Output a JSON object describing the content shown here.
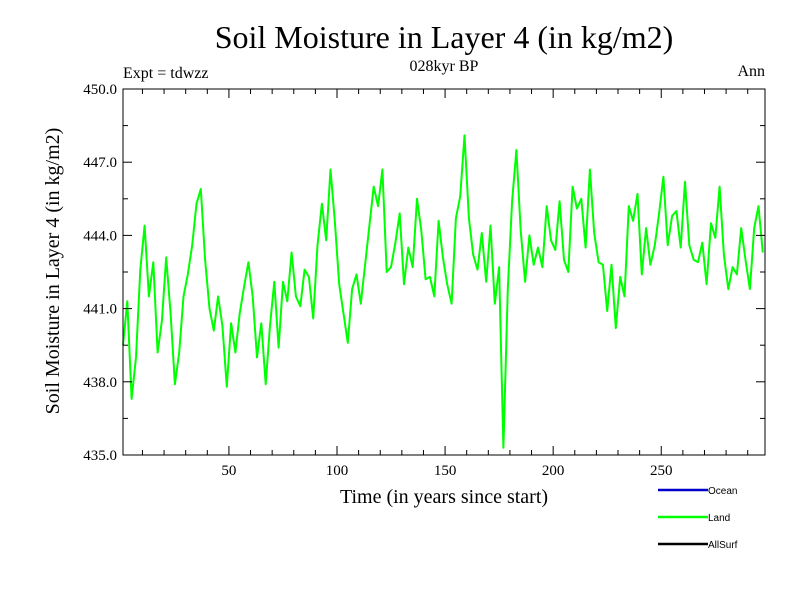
{
  "chart_data": {
    "type": "line",
    "title": "Soil Moisture in Layer 4 (in kg/m2)",
    "subtitle": "028kyr BP",
    "left_label": "Expt = tdwzz",
    "right_label": "Ann",
    "xlabel": "Time (in years since start)",
    "ylabel": "Soil Moisture in Layer 4 (in kg/m2)",
    "xlim": [
      1,
      298
    ],
    "ylim": [
      435.0,
      450.0
    ],
    "x_ticks": [
      50,
      100,
      150,
      200,
      250
    ],
    "x_tick_labels": [
      "50",
      "100",
      "150",
      "200",
      "250"
    ],
    "y_ticks": [
      435.0,
      438.0,
      441.0,
      444.0,
      447.0,
      450.0
    ],
    "y_tick_labels": [
      "435.0",
      "438.0",
      "441.0",
      "444.0",
      "447.0",
      "450.0"
    ],
    "grid": false,
    "legend_position": "bottom-right",
    "legend": [
      {
        "name": "Ocean",
        "color": "#0000cc"
      },
      {
        "name": "Land",
        "color": "#00ff00"
      },
      {
        "name": "AllSurf",
        "color": "#000000"
      }
    ],
    "series": [
      {
        "name": "Land",
        "color": "#00ff00",
        "x": [
          1,
          3,
          5,
          7,
          9,
          11,
          13,
          15,
          17,
          19,
          21,
          23,
          25,
          27,
          29,
          31,
          33,
          35,
          37,
          39,
          41,
          43,
          45,
          47,
          49,
          51,
          53,
          55,
          57,
          59,
          61,
          63,
          65,
          67,
          69,
          71,
          73,
          75,
          77,
          79,
          81,
          83,
          85,
          87,
          89,
          91,
          93,
          95,
          97,
          99,
          101,
          103,
          105,
          107,
          109,
          111,
          113,
          115,
          117,
          119,
          121,
          123,
          125,
          127,
          129,
          131,
          133,
          135,
          137,
          139,
          141,
          143,
          145,
          147,
          149,
          151,
          153,
          155,
          157,
          159,
          161,
          163,
          165,
          167,
          169,
          171,
          173,
          175,
          177,
          179,
          181,
          183,
          185,
          187,
          189,
          191,
          193,
          195,
          197,
          199,
          201,
          203,
          205,
          207,
          209,
          211,
          213,
          215,
          217,
          219,
          221,
          223,
          225,
          227,
          229,
          231,
          233,
          235,
          237,
          239,
          241,
          243,
          245,
          247,
          249,
          251,
          253,
          255,
          257,
          259,
          261,
          263,
          265,
          267,
          269,
          271,
          273,
          275,
          277,
          279,
          281,
          283,
          285,
          287,
          289,
          291,
          293,
          295,
          297
        ],
        "values": [
          439.5,
          441.3,
          437.3,
          439.0,
          442.6,
          444.4,
          441.5,
          442.9,
          439.2,
          440.5,
          443.1,
          440.8,
          437.9,
          439.2,
          441.5,
          442.4,
          443.6,
          445.3,
          445.9,
          443.0,
          441.0,
          440.1,
          441.5,
          440.3,
          437.8,
          440.4,
          439.2,
          440.8,
          441.9,
          442.9,
          441.5,
          439.0,
          440.4,
          437.9,
          440.3,
          442.1,
          439.4,
          442.1,
          441.3,
          443.3,
          441.5,
          441.1,
          442.6,
          442.3,
          440.6,
          443.6,
          445.3,
          443.8,
          446.7,
          444.6,
          442.0,
          440.8,
          439.6,
          441.8,
          442.4,
          441.2,
          442.8,
          444.4,
          446.0,
          445.2,
          446.7,
          442.5,
          442.7,
          443.7,
          444.9,
          442.0,
          443.5,
          442.7,
          445.5,
          444.2,
          442.2,
          442.3,
          441.5,
          444.6,
          443.1,
          442.0,
          441.2,
          444.7,
          445.6,
          448.1,
          444.7,
          443.2,
          442.6,
          444.1,
          442.1,
          444.4,
          441.2,
          442.7,
          435.3,
          441.8,
          445.4,
          447.5,
          444.2,
          442.1,
          444.0,
          442.8,
          443.5,
          442.7,
          445.2,
          443.8,
          443.4,
          445.4,
          443.0,
          442.5,
          446.0,
          445.1,
          445.5,
          443.5,
          446.7,
          444.1,
          442.9,
          442.8,
          440.9,
          442.8,
          440.2,
          442.3,
          441.5,
          445.2,
          444.6,
          445.7,
          442.4,
          444.3,
          442.8,
          443.6,
          444.9,
          446.4,
          443.6,
          444.8,
          445.0,
          443.5,
          446.2,
          443.6,
          443.0,
          442.9,
          443.7,
          442.0,
          444.5,
          443.9,
          446.0,
          443.2,
          441.8,
          442.7,
          442.4,
          444.3,
          443.0,
          441.8,
          444.3,
          445.2,
          443.3
        ]
      }
    ]
  }
}
